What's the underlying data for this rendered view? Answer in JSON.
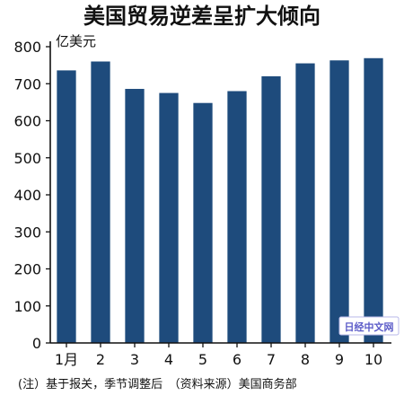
{
  "chart_data": {
    "type": "bar",
    "title": "美国贸易逆差呈扩大倾向",
    "unit_label": "亿美元",
    "categories": [
      "1月",
      "2",
      "3",
      "4",
      "5",
      "6",
      "7",
      "8",
      "9",
      "10"
    ],
    "values": [
      736,
      760,
      686,
      675,
      648,
      680,
      720,
      755,
      763,
      769
    ],
    "ylim": [
      0,
      800
    ],
    "yticks": [
      0,
      100,
      200,
      300,
      400,
      500,
      600,
      700,
      800
    ],
    "xlabel": "",
    "ylabel": "",
    "grid": false,
    "bar_color": "#1e4b7c",
    "note": "(注）基于报关，季节调整后　（资料来源）美国商务部"
  },
  "watermark": {
    "text": "日经中文网",
    "color": "#5a5ac8"
  }
}
